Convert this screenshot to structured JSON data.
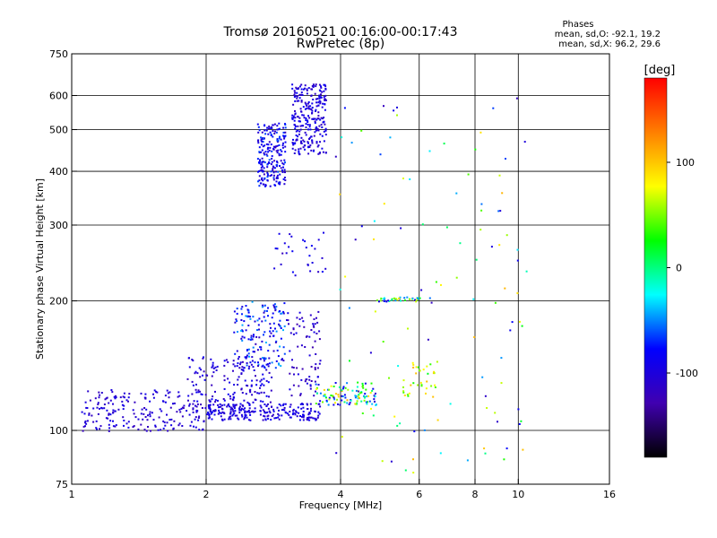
{
  "chart_data": {
    "type": "scatter",
    "title": "Tromsø 20160521 00:16:00-00:17:43",
    "subtitle": "RwPretec (8p)",
    "xlabel": "Frequency [MHz]",
    "ylabel": "Stationary phase Virtual Height [km]",
    "x_scale": "log",
    "y_scale": "log",
    "xlim": [
      1,
      16
    ],
    "ylim": [
      75,
      750
    ],
    "x_ticks": [
      1,
      2,
      4,
      6,
      8,
      10,
      16
    ],
    "x_tick_labels": [
      "1",
      "2",
      "4",
      "6",
      "8",
      "10",
      "16"
    ],
    "x_gridlines": [
      2,
      4,
      6,
      8,
      10
    ],
    "y_ticks": [
      75,
      100,
      200,
      300,
      400,
      500,
      600,
      750
    ],
    "y_tick_labels": [
      "75",
      "100",
      "200",
      "300",
      "400",
      "500",
      "600",
      "750"
    ],
    "y_gridlines": [
      100,
      200,
      300,
      400,
      500,
      600
    ],
    "grid": true,
    "stats_title": "Phases",
    "stats_lines": [
      "mean, sd,O: -92.1, 19.2",
      "mean, sd,X:  96.2, 29.6"
    ],
    "colorbar": {
      "label": "[deg]",
      "range": [
        -180,
        180
      ],
      "ticks": [
        100,
        0,
        -100
      ],
      "tick_labels": [
        "100",
        "0",
        "-100"
      ],
      "colors": [
        "#ff0000",
        "#ff7f00",
        "#ffff00",
        "#00ff00",
        "#00ffff",
        "#0000ff",
        "#4000b0",
        "#000000"
      ]
    },
    "series": [
      {
        "color_scale": "phase",
        "clusters": [
          {
            "x": [
              2.6,
              3.0
            ],
            "y": [
              370,
              520
            ],
            "phase": [
              -120,
              -60
            ],
            "n": 220
          },
          {
            "x": [
              3.1,
              3.7
            ],
            "y": [
              440,
              640
            ],
            "phase": [
              -120,
              -80
            ],
            "n": 260
          },
          {
            "x": [
              1.05,
              2.0
            ],
            "y": [
              100,
              125
            ],
            "phase": [
              -120,
              -90
            ],
            "n": 200
          },
          {
            "x": [
              2.0,
              3.6
            ],
            "y": [
              106,
              116
            ],
            "phase": [
              -115,
              -85
            ],
            "n": 220
          },
          {
            "x": [
              1.8,
              2.8
            ],
            "y": [
              110,
              150
            ],
            "phase": [
              -120,
              -80
            ],
            "n": 180
          },
          {
            "x": [
              2.3,
              3.0
            ],
            "y": [
              140,
              200
            ],
            "phase": [
              -120,
              -40
            ],
            "n": 160
          },
          {
            "x": [
              3.0,
              3.6
            ],
            "y": [
              120,
              190
            ],
            "phase": [
              -130,
              -90
            ],
            "n": 80
          },
          {
            "x": [
              3.5,
              4.8
            ],
            "y": [
              115,
              130
            ],
            "phase": [
              -110,
              110
            ],
            "n": 110
          },
          {
            "x": [
              4.8,
              6.0
            ],
            "y": [
              200,
              205
            ],
            "phase": [
              -110,
              110
            ],
            "n": 40
          },
          {
            "x": [
              2.8,
              3.8
            ],
            "y": [
              230,
              300
            ],
            "phase": [
              -120,
              -80
            ],
            "n": 30
          },
          {
            "x": [
              3.8,
              10.5
            ],
            "y": [
              80,
              600
            ],
            "phase": [
              -120,
              110
            ],
            "n": 110
          },
          {
            "x": [
              5.5,
              6.5
            ],
            "y": [
              120,
              145
            ],
            "phase": [
              30,
              110
            ],
            "n": 35
          }
        ]
      }
    ]
  }
}
